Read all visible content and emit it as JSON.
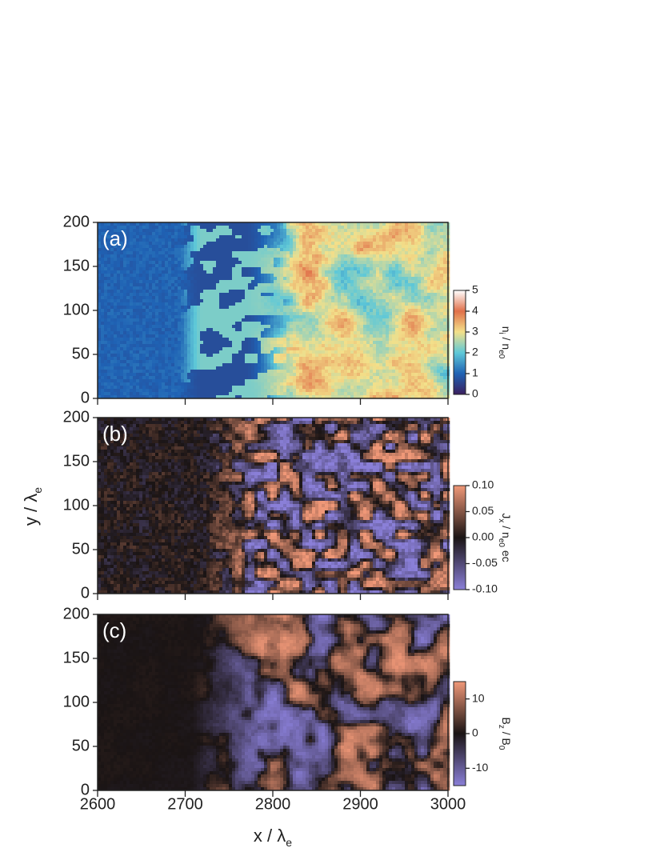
{
  "chart_data": [
    {
      "type": "heatmap",
      "panel_label": "(a)",
      "xlim": [
        2600,
        3000
      ],
      "xticks": [
        2600,
        2700,
        2800,
        2900,
        3000
      ],
      "ylim": [
        0,
        200
      ],
      "yticks": [
        0,
        50,
        100,
        150,
        200
      ],
      "colorbar": {
        "label": [
          "n",
          "i",
          " / n",
          "e0"
        ],
        "lim": [
          0,
          5
        ],
        "ticks": [
          0,
          1,
          2,
          3,
          4,
          5
        ],
        "colors": [
          "#3b1f5e",
          "#1f62b4",
          "#5ec8d8",
          "#f3e08a",
          "#e0704a",
          "#ffffff"
        ]
      }
    },
    {
      "type": "heatmap",
      "panel_label": "(b)",
      "ylabel": [
        "y / λ",
        "e"
      ],
      "xlim": [
        2600,
        3000
      ],
      "xticks": [
        2600,
        2700,
        2800,
        2900,
        3000
      ],
      "ylim": [
        0,
        200
      ],
      "yticks": [
        0,
        50,
        100,
        150,
        200
      ],
      "colorbar": {
        "label": [
          "J",
          "x",
          " / n",
          "e0",
          " ec"
        ],
        "lim": [
          -0.1,
          0.1
        ],
        "ticks": [
          {
            "value": -0.1,
            "label": "-0.10"
          },
          {
            "value": -0.05,
            "label": "-0.05"
          },
          {
            "value": 0,
            "label": "0.00"
          },
          {
            "value": 0.05,
            "label": "0.05"
          },
          {
            "value": 0.1,
            "label": "0.10"
          }
        ],
        "colors": [
          "#8a7fd8",
          "#1a1414",
          "#f09878"
        ]
      }
    },
    {
      "type": "heatmap",
      "panel_label": "(c)",
      "xlabel": [
        "x / λ",
        "e"
      ],
      "xlim": [
        2600,
        3000
      ],
      "xticks": [
        2600,
        2700,
        2800,
        2900,
        3000
      ],
      "ylim": [
        0,
        200
      ],
      "yticks": [
        0,
        50,
        100,
        150,
        200
      ],
      "colorbar": {
        "label": [
          "B",
          "z",
          " / B",
          "0"
        ],
        "lim": [
          -15,
          15
        ],
        "ticks": [
          -10,
          0,
          10
        ],
        "colors": [
          "#8a7fd8",
          "#1a1414",
          "#f09878"
        ]
      }
    }
  ]
}
